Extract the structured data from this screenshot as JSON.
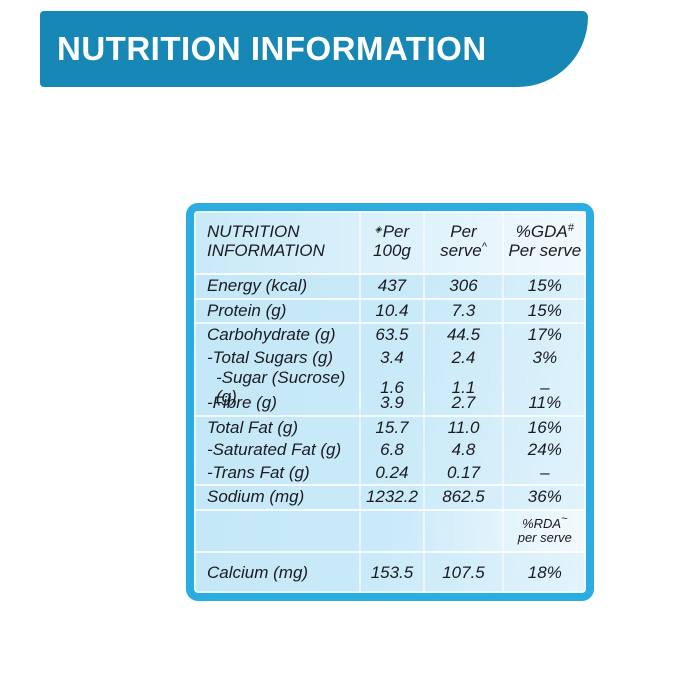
{
  "banner": {
    "title": "NUTRITION INFORMATION"
  },
  "colors": {
    "banner_bg": "#1787b5",
    "table_border": "#2bade2",
    "table_bg": "#c9eaf8",
    "text": "#1b1b22"
  },
  "table": {
    "header": {
      "title_line1": "NUTRITION",
      "title_line2": "INFORMATION",
      "col_per100g": {
        "sup": "◈",
        "line1": "Per",
        "line2": "100g"
      },
      "col_per_serve": {
        "line1": "Per",
        "line2": "serve",
        "sup": "^"
      },
      "col_gda": {
        "line1": "%GDA",
        "sup": "#",
        "line2": "Per serve"
      }
    },
    "rows": [
      {
        "label": "Energy (kcal)",
        "per_100g": "437",
        "per_serve": "306",
        "gda": "15%"
      },
      {
        "label": "Protein (g)",
        "per_100g": "10.4",
        "per_serve": "7.3",
        "gda": "15%"
      },
      {
        "label": "Carbohydrate (g)",
        "per_100g": "63.5",
        "per_serve": "44.5",
        "gda": "17%"
      },
      {
        "label": "-Total Sugars (g)",
        "per_100g": "3.4",
        "per_serve": "2.4",
        "gda": "3%"
      },
      {
        "label": "-Sugar (Sucrose) (g)",
        "per_100g": "1.6",
        "per_serve": "1.1",
        "gda": "–"
      },
      {
        "label": "-Fibre (g)",
        "per_100g": "3.9",
        "per_serve": "2.7",
        "gda": "11%"
      },
      {
        "label": "Total Fat (g)",
        "per_100g": "15.7",
        "per_serve": "11.0",
        "gda": "16%"
      },
      {
        "label": "-Saturated Fat (g)",
        "per_100g": "6.8",
        "per_serve": "4.8",
        "gda": "24%"
      },
      {
        "label": "-Trans Fat (g)",
        "per_100g": "0.24",
        "per_serve": "0.17",
        "gda": "–"
      },
      {
        "label": "Sodium (mg)",
        "per_100g": "1232.2",
        "per_serve": "862.5",
        "gda": "36%"
      },
      {
        "label": "Calcium (mg)",
        "per_100g": "153.5",
        "per_serve": "107.5",
        "gda": "18%"
      }
    ],
    "rda_note": {
      "line1": "%RDA",
      "sup": "~",
      "line2": "per serve"
    }
  }
}
